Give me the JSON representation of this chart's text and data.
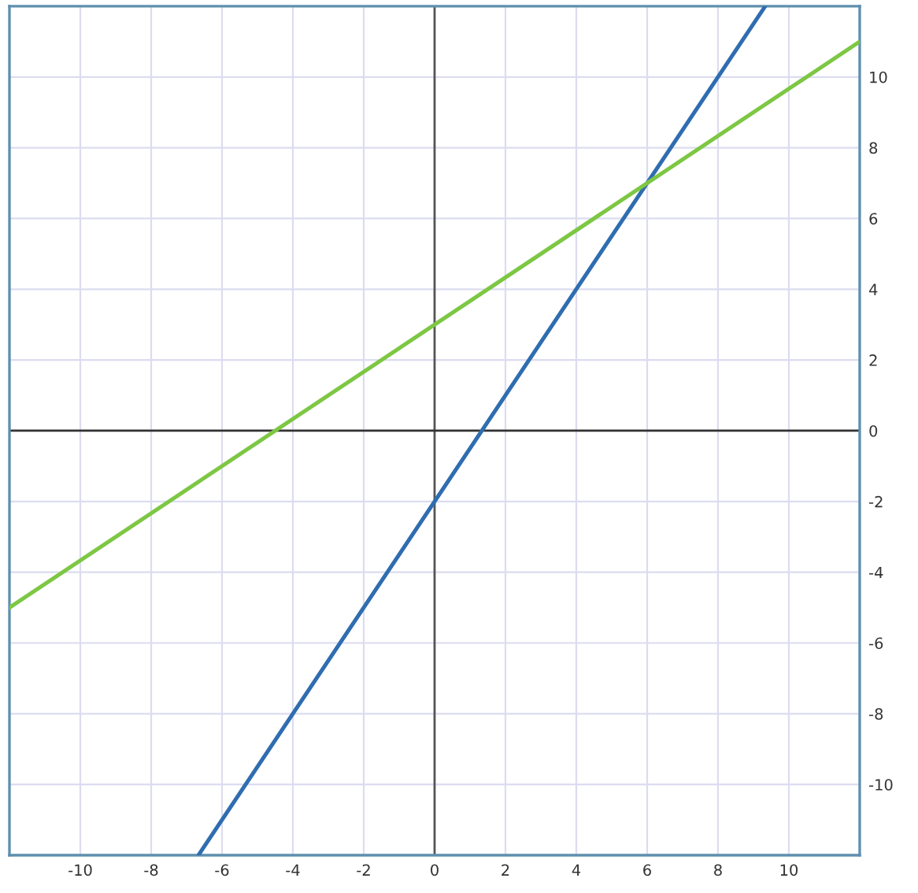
{
  "chart_data": {
    "type": "line",
    "series": [
      {
        "color": "#2f6db0",
        "x": [
          -6.667,
          9.333
        ],
        "values": [
          -12,
          12
        ]
      },
      {
        "color": "#7dc744",
        "x": [
          -12,
          12
        ],
        "values": [
          -5,
          11
        ]
      }
    ],
    "xlim": [
      -12,
      12
    ],
    "ylim": [
      -12,
      12
    ],
    "xticks": [
      -10,
      -8,
      -6,
      -4,
      -2,
      0,
      2,
      4,
      6,
      8,
      10
    ],
    "yticks": [
      -10,
      -8,
      -6,
      -4,
      -2,
      0,
      2,
      4,
      6,
      8,
      10
    ],
    "grid": true,
    "ref_lines": [
      {
        "axis": "x",
        "value": 0,
        "color": "#555555"
      },
      {
        "axis": "y",
        "value": 0,
        "color": "#333333"
      }
    ]
  }
}
